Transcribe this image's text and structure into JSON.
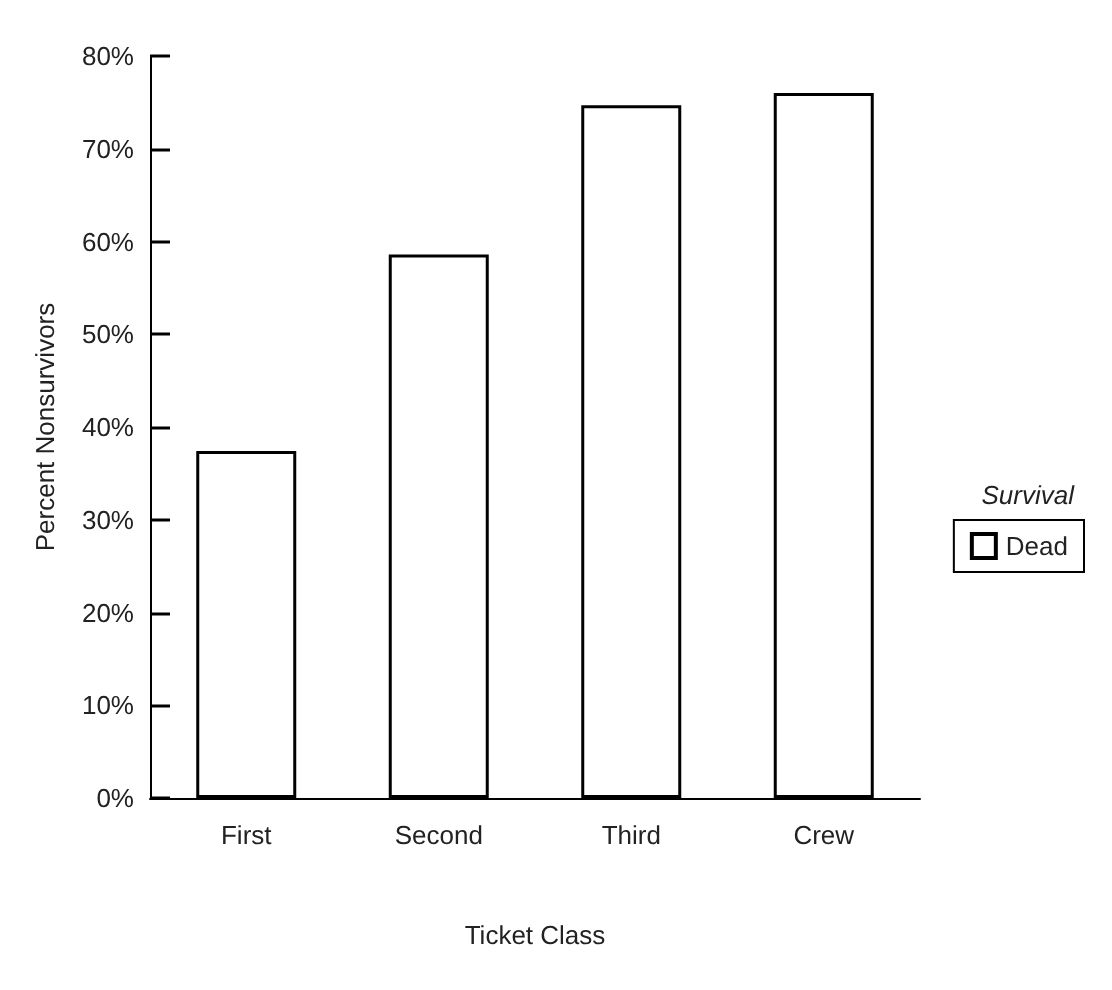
{
  "chart_data": {
    "type": "bar",
    "categories": [
      "First",
      "Second",
      "Third",
      "Crew"
    ],
    "series": [
      {
        "name": "Dead",
        "color": "#ffffff",
        "values": [
          37.4,
          58.6,
          74.7,
          76.0
        ]
      }
    ],
    "xlabel": "Ticket Class",
    "ylabel": "Percent Nonsurvivors",
    "legend_title": "Survival",
    "legend": "right",
    "ylim": [
      0,
      80
    ],
    "yticks": [
      {
        "value": 0,
        "label": "0%"
      },
      {
        "value": 10,
        "label": "10%"
      },
      {
        "value": 20,
        "label": "20%"
      },
      {
        "value": 30,
        "label": "30%"
      },
      {
        "value": 40,
        "label": "40%"
      },
      {
        "value": 50,
        "label": "50%"
      },
      {
        "value": 60,
        "label": "60%"
      },
      {
        "value": 70,
        "label": "70%"
      },
      {
        "value": 80,
        "label": "80%"
      }
    ],
    "grid": false
  }
}
